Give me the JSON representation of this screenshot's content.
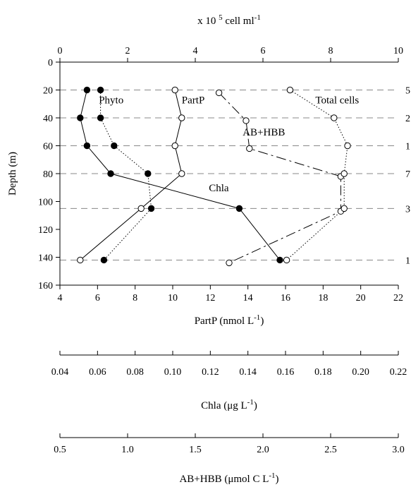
{
  "chart_data": {
    "type": "line",
    "top_axis": {
      "title": "x 10",
      "title_sup": "5",
      "title_unit": "cell ml",
      "title_unit_sup": "-1",
      "range": [
        0,
        10
      ],
      "ticks": [
        0,
        2,
        4,
        6,
        8,
        10
      ],
      "tick_labels": [
        "0",
        "2",
        "4",
        "6",
        "8",
        "10"
      ]
    },
    "y_axis": {
      "title": "Depth (m)",
      "range": [
        0,
        160
      ],
      "inverted": true,
      "ticks": [
        0,
        20,
        40,
        60,
        80,
        100,
        120,
        140,
        160
      ],
      "tick_labels": [
        "0",
        "20",
        "40",
        "60",
        "80",
        "100",
        "120",
        "140",
        "160"
      ]
    },
    "bottom_axes": [
      {
        "id": "partp",
        "title": "PartP (nmol L",
        "title_sup": "-1",
        "title_end": ")",
        "range": [
          4,
          22
        ],
        "ticks": [
          4,
          6,
          8,
          10,
          12,
          14,
          16,
          18,
          20,
          22
        ],
        "tick_labels": [
          "4",
          "6",
          "8",
          "10",
          "12",
          "14",
          "16",
          "18",
          "20",
          "22"
        ]
      },
      {
        "id": "chla",
        "title": "Chla (μg L",
        "title_sup": "-1",
        "title_end": ")",
        "range": [
          0.04,
          0.22
        ],
        "ticks": [
          0.04,
          0.06,
          0.08,
          0.1,
          0.12,
          0.14,
          0.16,
          0.18,
          0.2,
          0.22
        ],
        "tick_labels": [
          "0.04",
          "0.06",
          "0.08",
          "0.10",
          "0.12",
          "0.14",
          "0.16",
          "0.18",
          "0.20",
          "0.22"
        ]
      },
      {
        "id": "abhbb",
        "title": "AB+HBB (μmol C L",
        "title_sup": "-1",
        "title_end": ")",
        "range": [
          0.5,
          3.0
        ],
        "ticks": [
          0.5,
          1.0,
          1.5,
          2.0,
          2.5,
          3.0
        ],
        "tick_labels": [
          "0.5",
          "1.0",
          "1.5",
          "2.0",
          "2.5",
          "3.0"
        ]
      }
    ],
    "reference_lines_depth": [
      20,
      40,
      60,
      80,
      105,
      142
    ],
    "right_labels": [
      {
        "depth": 20,
        "text": "5"
      },
      {
        "depth": 40,
        "text": "2"
      },
      {
        "depth": 60,
        "text": "1"
      },
      {
        "depth": 80,
        "text": "7"
      },
      {
        "depth": 105,
        "text": "3"
      },
      {
        "depth": 142,
        "text": "1"
      }
    ],
    "series": [
      {
        "name": "Phyto",
        "axis": "top",
        "marker": "filled",
        "line": "solid",
        "label_at": [
          1.15,
          27
        ],
        "points": [
          [
            0.8,
            20
          ],
          [
            0.6,
            40
          ],
          [
            0.8,
            60
          ],
          [
            1.5,
            80
          ],
          [
            5.3,
            105
          ],
          [
            6.5,
            142
          ]
        ]
      },
      {
        "name": "",
        "axis": "top",
        "marker": "filled",
        "line": "dotted",
        "points": [
          [
            1.2,
            20
          ],
          [
            1.2,
            40
          ],
          [
            1.6,
            60
          ],
          [
            2.6,
            80
          ],
          [
            2.7,
            105
          ],
          [
            1.3,
            142
          ]
        ]
      },
      {
        "name": "PartP",
        "axis": "top",
        "marker": "open",
        "line": "solid",
        "label_at": [
          3.6,
          27
        ],
        "points": [
          [
            3.4,
            20
          ],
          [
            3.6,
            40
          ],
          [
            3.4,
            60
          ],
          [
            3.6,
            80
          ],
          [
            2.4,
            105
          ],
          [
            0.6,
            142
          ]
        ]
      },
      {
        "name": "AB+HBB",
        "axis": "top",
        "marker": "open",
        "line": "dashed",
        "label_at": [
          5.4,
          50
        ],
        "points": [
          [
            4.7,
            22
          ],
          [
            5.5,
            42
          ],
          [
            5.6,
            62
          ],
          [
            8.3,
            82
          ],
          [
            8.3,
            107
          ],
          [
            5.0,
            144
          ]
        ]
      },
      {
        "name": "Total cells",
        "axis": "top",
        "marker": "open",
        "line": "dotted",
        "label_at": [
          7.55,
          27
        ],
        "points": [
          [
            6.8,
            20
          ],
          [
            8.1,
            40
          ],
          [
            8.5,
            60
          ],
          [
            8.4,
            80
          ],
          [
            8.4,
            105
          ],
          [
            6.7,
            142
          ]
        ]
      },
      {
        "name": "Chla",
        "axis": "top",
        "marker": "none",
        "line": "none",
        "label_at": [
          4.4,
          90
        ],
        "points": []
      }
    ]
  }
}
